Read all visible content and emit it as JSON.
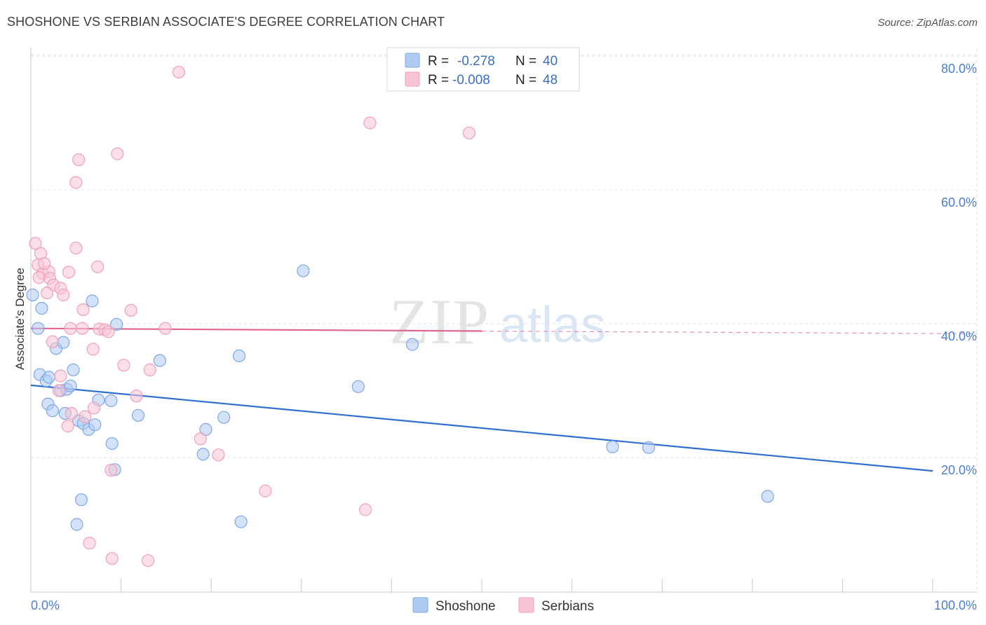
{
  "title": "SHOSHONE VS SERBIAN ASSOCIATE'S DEGREE CORRELATION CHART",
  "source": "Source: ZipAtlas.com",
  "watermark": {
    "part1": "ZIP",
    "part2": "atlas"
  },
  "chart_data": {
    "type": "scatter",
    "title": "SHOSHONE VS SERBIAN ASSOCIATE'S DEGREE CORRELATION CHART",
    "xlabel": "",
    "ylabel": "Associate's Degree",
    "xlim": [
      0,
      100
    ],
    "ylim": [
      0,
      83
    ],
    "x_tick_labels": {
      "min": "0.0%",
      "max": "100.0%"
    },
    "y_ticks": [
      20,
      40,
      60,
      80
    ],
    "y_tick_labels": [
      "20.0%",
      "40.0%",
      "60.0%",
      "80.0%"
    ],
    "legend": {
      "rows": [
        {
          "r_label": "R =",
          "r_value": "-0.278",
          "n_label": "N =",
          "n_value": "40"
        },
        {
          "r_label": "R =",
          "r_value": "-0.008",
          "n_label": "N =",
          "n_value": "48"
        }
      ]
    },
    "series": [
      {
        "name": "Shoshone",
        "color": "#7ea8e6",
        "fill": "#aecbf2",
        "line_color": "#2f6fd1",
        "trend": {
          "x0": 0,
          "y0": 30.8,
          "x1": 100,
          "y1": 18.0
        },
        "points": [
          [
            0.2,
            44.3
          ],
          [
            1.2,
            42.3
          ],
          [
            0.8,
            39.3
          ],
          [
            1.0,
            32.4
          ],
          [
            1.7,
            31.5
          ],
          [
            2.0,
            32.0
          ],
          [
            1.9,
            28.0
          ],
          [
            2.4,
            27.0
          ],
          [
            2.8,
            36.3
          ],
          [
            3.6,
            37.2
          ],
          [
            3.3,
            30.0
          ],
          [
            4.0,
            30.2
          ],
          [
            4.4,
            30.7
          ],
          [
            3.8,
            26.6
          ],
          [
            4.7,
            33.1
          ],
          [
            5.3,
            25.5
          ],
          [
            5.8,
            25.1
          ],
          [
            6.4,
            24.2
          ],
          [
            7.1,
            24.9
          ],
          [
            9.0,
            22.1
          ],
          [
            6.8,
            43.4
          ],
          [
            9.3,
            18.2
          ],
          [
            7.5,
            28.6
          ],
          [
            8.9,
            28.5
          ],
          [
            9.5,
            39.9
          ],
          [
            11.9,
            26.3
          ],
          [
            14.3,
            34.5
          ],
          [
            19.1,
            20.5
          ],
          [
            19.4,
            24.2
          ],
          [
            21.4,
            26.0
          ],
          [
            23.1,
            35.2
          ],
          [
            23.3,
            10.4
          ],
          [
            30.2,
            47.9
          ],
          [
            36.3,
            30.6
          ],
          [
            42.3,
            36.9
          ],
          [
            5.6,
            13.7
          ],
          [
            5.1,
            10.0
          ],
          [
            64.5,
            21.6
          ],
          [
            68.5,
            21.5
          ],
          [
            81.7,
            14.2
          ]
        ]
      },
      {
        "name": "Serbians",
        "color": "#f0a0ba",
        "fill": "#f7c4d4",
        "line_color": "#e2628e",
        "trend": {
          "x0": 0,
          "y0": 39.3,
          "x1": 50,
          "y1": 38.9
        },
        "trend_dashed": {
          "x0": 50,
          "y0": 38.9,
          "x1": 100,
          "y1": 38.5
        },
        "points": [
          [
            0.5,
            52.0
          ],
          [
            0.8,
            48.8
          ],
          [
            1.1,
            50.5
          ],
          [
            1.3,
            47.5
          ],
          [
            0.9,
            46.9
          ],
          [
            2.0,
            47.8
          ],
          [
            2.1,
            46.8
          ],
          [
            2.5,
            45.8
          ],
          [
            1.8,
            44.6
          ],
          [
            3.3,
            45.3
          ],
          [
            3.6,
            44.3
          ],
          [
            4.2,
            47.7
          ],
          [
            5.0,
            51.3
          ],
          [
            7.4,
            48.5
          ],
          [
            5.8,
            42.1
          ],
          [
            4.4,
            39.3
          ],
          [
            5.7,
            39.3
          ],
          [
            7.6,
            39.2
          ],
          [
            8.2,
            39.1
          ],
          [
            8.6,
            38.8
          ],
          [
            11.1,
            42.0
          ],
          [
            14.9,
            39.3
          ],
          [
            2.4,
            37.3
          ],
          [
            6.9,
            36.2
          ],
          [
            10.3,
            33.8
          ],
          [
            13.2,
            33.1
          ],
          [
            3.3,
            32.2
          ],
          [
            3.1,
            30.0
          ],
          [
            11.7,
            29.2
          ],
          [
            4.5,
            26.6
          ],
          [
            6.0,
            26.1
          ],
          [
            7.0,
            27.4
          ],
          [
            4.1,
            24.7
          ],
          [
            18.8,
            22.8
          ],
          [
            20.8,
            20.4
          ],
          [
            8.9,
            18.1
          ],
          [
            26.0,
            15.0
          ],
          [
            37.1,
            12.2
          ],
          [
            6.5,
            7.2
          ],
          [
            9.0,
            4.9
          ],
          [
            13.0,
            4.6
          ],
          [
            5.3,
            64.5
          ],
          [
            9.6,
            65.4
          ],
          [
            5.0,
            61.1
          ],
          [
            16.4,
            77.6
          ],
          [
            37.6,
            70.0
          ],
          [
            48.6,
            68.5
          ],
          [
            1.5,
            49.0
          ]
        ]
      }
    ]
  }
}
